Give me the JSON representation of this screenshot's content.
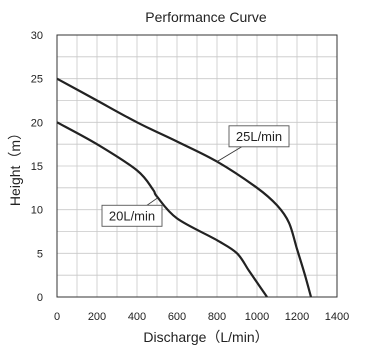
{
  "chart_data": {
    "type": "line",
    "title": "Performance Curve",
    "xlabel": "Discharge（L/min）",
    "ylabel": "Height（m）",
    "xlim": [
      0,
      1400
    ],
    "ylim": [
      0,
      30
    ],
    "xticks": [
      "0",
      "200",
      "400",
      "600",
      "800",
      "1000",
      "1200",
      "1400"
    ],
    "yticks": [
      "0",
      "5",
      "10",
      "15",
      "20",
      "25",
      "30"
    ],
    "grid": true,
    "legend": "none",
    "series": [
      {
        "name": "25L/min",
        "color": "#222222",
        "points": [
          [
            0,
            25
          ],
          [
            200,
            22.5
          ],
          [
            400,
            20
          ],
          [
            600,
            17.8
          ],
          [
            800,
            15.5
          ],
          [
            1000,
            12.5
          ],
          [
            1100,
            10.5
          ],
          [
            1160,
            8.5
          ],
          [
            1200,
            5.5
          ],
          [
            1240,
            2.5
          ],
          [
            1270,
            0
          ]
        ]
      },
      {
        "name": "20L/min",
        "color": "#222222",
        "points": [
          [
            0,
            20
          ],
          [
            200,
            17.5
          ],
          [
            400,
            14.5
          ],
          [
            480,
            12.3
          ],
          [
            500,
            11.5
          ],
          [
            600,
            9
          ],
          [
            800,
            6.5
          ],
          [
            900,
            5
          ],
          [
            960,
            3
          ],
          [
            1020,
            1
          ],
          [
            1050,
            0
          ]
        ]
      }
    ],
    "annotations": [
      {
        "text": "25L/min",
        "box_at": [
          1010,
          18.4
        ],
        "arrow_to": [
          800,
          15.5
        ]
      },
      {
        "text": "20L/min",
        "box_at": [
          375,
          9.3
        ],
        "arrow_to": [
          500,
          11.3
        ]
      }
    ]
  }
}
